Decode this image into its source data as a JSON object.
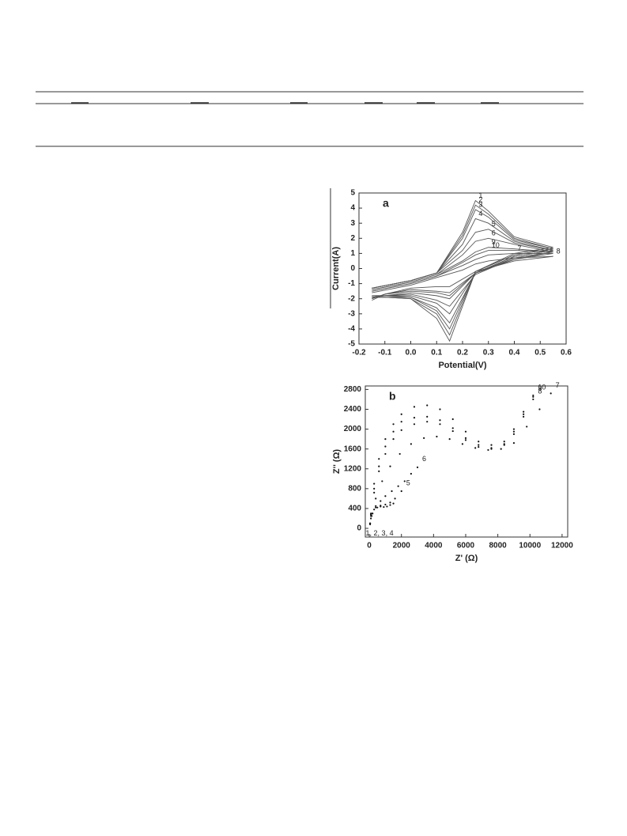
{
  "chart_data": [
    {
      "type": "line",
      "panel_label": "a",
      "x_label": "Potential(V)",
      "y_label": "Current(A)",
      "xlim": [
        -0.2,
        0.6
      ],
      "ylim": [
        -5,
        5
      ],
      "xticks": [
        -0.2,
        -0.1,
        {
          "value": 0,
          "label": "0.0"
        },
        0.1,
        0.2,
        0.3,
        0.4,
        0.5,
        0.6
      ],
      "yticks": [
        -5,
        -4,
        -3,
        -2,
        -1,
        0,
        1,
        2,
        3,
        4,
        5
      ],
      "color": "#555555",
      "series": [
        {
          "name": "1",
          "x": [
            -0.15,
            0,
            0.1,
            0.2,
            0.25,
            0.3,
            0.4,
            0.55,
            0.4,
            0.25,
            0.15,
            0.1,
            0,
            -0.1,
            -0.15
          ],
          "values": [
            -1.3,
            -0.8,
            -0.3,
            2.4,
            4.5,
            3.8,
            2.1,
            1.4,
            1.0,
            -0.2,
            -4.8,
            -3.3,
            -2.0,
            -1.9,
            -1.9
          ]
        },
        {
          "name": "2",
          "x": [
            -0.15,
            0,
            0.1,
            0.2,
            0.25,
            0.3,
            0.4,
            0.55,
            0.4,
            0.25,
            0.15,
            0.1,
            0,
            -0.1,
            -0.15
          ],
          "values": [
            -1.3,
            -0.8,
            -0.3,
            2.2,
            4.2,
            3.6,
            2.0,
            1.3,
            0.9,
            -0.2,
            -4.4,
            -3.0,
            -2.0,
            -1.9,
            -1.9
          ]
        },
        {
          "name": "3",
          "x": [
            -0.15,
            0,
            0.1,
            0.2,
            0.25,
            0.3,
            0.4,
            0.55,
            0.4,
            0.25,
            0.15,
            0.1,
            0,
            -0.1,
            -0.15
          ],
          "values": [
            -1.3,
            -0.8,
            -0.3,
            2.0,
            3.9,
            3.4,
            1.9,
            1.3,
            0.9,
            -0.2,
            -4.0,
            -2.8,
            -1.9,
            -1.9,
            -1.9
          ]
        },
        {
          "name": "4",
          "x": [
            -0.15,
            0,
            0.1,
            0.2,
            0.25,
            0.3,
            0.4,
            0.55,
            0.4,
            0.25,
            0.15,
            0.1,
            0,
            -0.1,
            -0.15
          ],
          "values": [
            -1.3,
            -0.8,
            -0.3,
            1.6,
            3.3,
            3.0,
            1.8,
            1.2,
            0.8,
            -0.3,
            -3.6,
            -2.6,
            -1.9,
            -1.8,
            -1.9
          ]
        },
        {
          "name": "5",
          "x": [
            -0.15,
            0,
            0.1,
            0.2,
            0.25,
            0.3,
            0.4,
            0.55,
            0.4,
            0.25,
            0.15,
            0.1,
            0,
            -0.1,
            -0.15
          ],
          "values": [
            -1.3,
            -0.8,
            -0.3,
            1.2,
            2.4,
            2.6,
            1.7,
            1.2,
            0.8,
            -0.3,
            -3.0,
            -2.3,
            -1.8,
            -1.8,
            -1.8
          ]
        },
        {
          "name": "6",
          "x": [
            -0.15,
            0,
            0.1,
            0.2,
            0.25,
            0.3,
            0.4,
            0.55,
            0.4,
            0.25,
            0.15,
            0.1,
            0,
            -0.1,
            -0.15
          ],
          "values": [
            -1.4,
            -0.9,
            -0.4,
            0.9,
            1.8,
            2.0,
            1.6,
            1.1,
            0.7,
            -0.4,
            -2.5,
            -2.1,
            -1.7,
            -1.8,
            -1.8
          ]
        },
        {
          "name": "7",
          "x": [
            -0.15,
            0,
            0.1,
            0.2,
            0.25,
            0.3,
            0.4,
            0.55,
            0.4,
            0.25,
            0.15,
            0.1,
            0,
            -0.1,
            -0.15
          ],
          "values": [
            -1.5,
            -1.0,
            -0.5,
            0.2,
            0.6,
            0.9,
            1.0,
            1.0,
            0.6,
            -0.3,
            -1.6,
            -1.5,
            -1.4,
            -1.7,
            -2.0
          ]
        },
        {
          "name": "8",
          "x": [
            -0.15,
            0,
            0.1,
            0.2,
            0.25,
            0.3,
            0.4,
            0.55,
            0.4,
            0.25,
            0.15,
            0.1,
            0,
            -0.1,
            -0.15
          ],
          "values": [
            -1.6,
            -1.1,
            -0.6,
            -0.1,
            0.3,
            0.5,
            0.7,
            0.8,
            0.5,
            -0.2,
            -1.2,
            -1.2,
            -1.3,
            -1.7,
            -2.1
          ]
        },
        {
          "name": "9",
          "x": [
            -0.15,
            0,
            0.1,
            0.2,
            0.25,
            0.3,
            0.4,
            0.55,
            0.4,
            0.25,
            0.15,
            0.1,
            0,
            -0.1,
            -0.15
          ],
          "values": [
            -1.4,
            -0.9,
            -0.4,
            0.5,
            1.1,
            1.4,
            1.3,
            1.1,
            0.7,
            -0.3,
            -2.0,
            -1.8,
            -1.6,
            -1.8,
            -1.9
          ]
        },
        {
          "name": "10",
          "x": [
            -0.15,
            0,
            0.1,
            0.2,
            0.25,
            0.3,
            0.4,
            0.55,
            0.4,
            0.25,
            0.15,
            0.1,
            0,
            -0.1,
            -0.15
          ],
          "values": [
            -1.5,
            -1.0,
            -0.5,
            0.4,
            0.9,
            1.2,
            1.2,
            1.1,
            0.6,
            -0.3,
            -1.8,
            -1.6,
            -1.5,
            -1.7,
            -2.0
          ]
        }
      ]
    },
    {
      "type": "scatter",
      "panel_label": "b",
      "x_label": "Z' (Ω)",
      "y_label": "Z'' (Ω)",
      "xlim": [
        -250,
        12350
      ],
      "ylim": [
        -175,
        2870
      ],
      "xticks": [
        0,
        2000,
        4000,
        6000,
        8000,
        10000,
        12000
      ],
      "yticks": [
        0,
        400,
        800,
        1200,
        1600,
        2000,
        2400,
        2800
      ],
      "color": "#111111",
      "series": [
        {
          "name": "1, 2, 3, 4",
          "x": [
            50,
            150,
            300,
            500,
            700,
            900,
            1100,
            1300,
            1500
          ],
          "values": [
            80,
            250,
            380,
            420,
            440,
            430,
            440,
            470,
            500
          ]
        },
        {
          "name": "5",
          "x": [
            50,
            200,
            400,
            700,
            1000,
            1300,
            1600,
            2000
          ],
          "values": [
            100,
            300,
            420,
            460,
            480,
            520,
            600,
            750
          ]
        },
        {
          "name": "6",
          "x": [
            50,
            200,
            400,
            700,
            1000,
            1400,
            1800,
            2200,
            2600,
            3000
          ],
          "values": [
            100,
            300,
            450,
            550,
            650,
            750,
            850,
            950,
            1100,
            1230
          ]
        },
        {
          "name": "7",
          "x": [
            100,
            400,
            800,
            1300,
            1900,
            2600,
            3400,
            4200,
            5000,
            5800,
            6600,
            7400,
            8200,
            9000,
            9800,
            10600,
            11300
          ],
          "values": [
            200,
            600,
            950,
            1250,
            1500,
            1700,
            1820,
            1850,
            1800,
            1700,
            1620,
            1580,
            1600,
            1720,
            2050,
            2400,
            2720
          ]
        },
        {
          "name": "8",
          "x": [
            100,
            300,
            600,
            1000,
            1500,
            2000,
            2800,
            3600,
            4400,
            5200,
            6000,
            6800,
            7600,
            8400,
            9000,
            9600,
            10200
          ],
          "values": [
            250,
            720,
            1150,
            1500,
            1800,
            1980,
            2100,
            2150,
            2100,
            1960,
            1780,
            1640,
            1600,
            1680,
            1900,
            2250,
            2600
          ]
        },
        {
          "name": "9",
          "x": [
            100,
            300,
            600,
            1000,
            1500,
            2000,
            2800,
            3600,
            4400,
            5200,
            6000,
            6800,
            7600,
            8400,
            9000,
            9600,
            10200
          ],
          "values": [
            280,
            800,
            1250,
            1650,
            1950,
            2150,
            2230,
            2250,
            2180,
            2020,
            1820,
            1680,
            1620,
            1700,
            1950,
            2300,
            2650
          ]
        },
        {
          "name": "10",
          "x": [
            100,
            300,
            600,
            1000,
            1500,
            2000,
            2800,
            3600,
            4400,
            5200,
            6000,
            6800,
            7600,
            8400,
            9000,
            9600,
            10200
          ],
          "values": [
            300,
            900,
            1400,
            1800,
            2100,
            2300,
            2450,
            2480,
            2400,
            2200,
            1950,
            1750,
            1680,
            1750,
            2000,
            2350,
            2680
          ]
        }
      ]
    }
  ]
}
